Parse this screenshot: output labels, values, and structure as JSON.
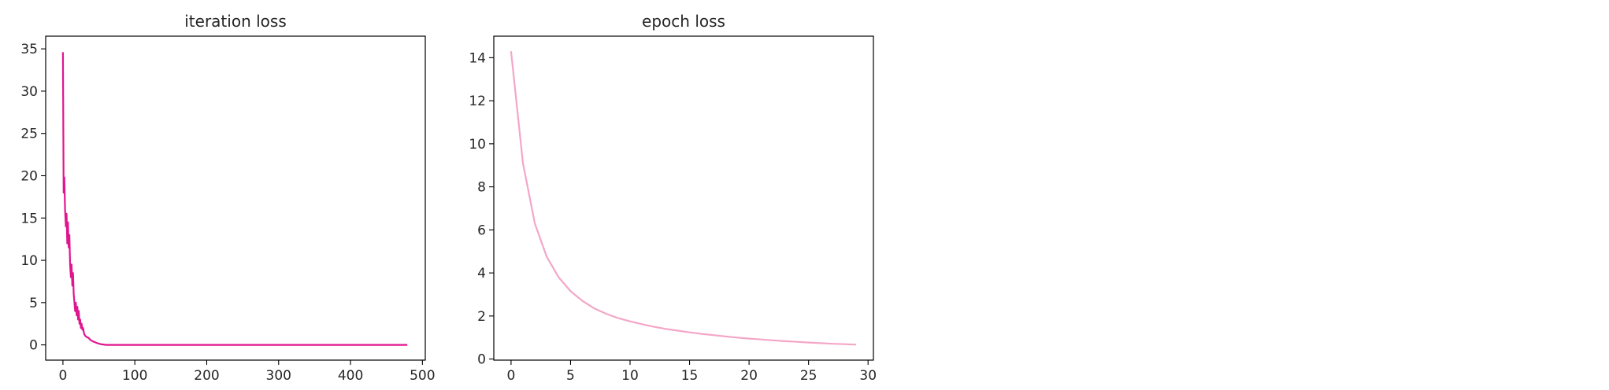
{
  "chart_data": [
    {
      "type": "line",
      "title": "iteration loss",
      "xlabel": "",
      "ylabel": "",
      "xlim": [
        -24,
        504
      ],
      "ylim": [
        -1.8,
        36.5
      ],
      "xticks": [
        0,
        100,
        200,
        300,
        400,
        500
      ],
      "yticks": [
        0,
        5,
        10,
        15,
        20,
        25,
        30,
        35
      ],
      "grid": false,
      "color": "#e0168f",
      "series": [
        {
          "x": [
            0,
            1,
            2,
            3,
            4,
            5,
            6,
            7,
            8,
            9,
            10,
            11,
            12,
            13,
            14,
            15,
            16,
            17,
            18,
            19,
            20,
            21,
            22,
            23,
            24,
            25,
            26,
            27,
            28,
            29,
            30,
            32,
            34,
            36,
            38,
            40,
            42,
            45,
            48,
            52,
            56,
            60,
            70,
            80,
            100,
            150,
            200,
            250,
            300,
            350,
            400,
            450,
            479
          ],
          "y": [
            34.6,
            18.0,
            19.8,
            16.0,
            14.0,
            15.5,
            12.0,
            14.5,
            11.5,
            13.0,
            9.5,
            8.0,
            9.5,
            7.0,
            8.5,
            6.0,
            5.0,
            4.0,
            5.0,
            3.5,
            4.5,
            3.0,
            4.0,
            2.5,
            3.0,
            2.0,
            2.5,
            1.8,
            2.0,
            1.5,
            1.2,
            1.0,
            0.9,
            0.8,
            0.6,
            0.5,
            0.4,
            0.3,
            0.2,
            0.1,
            0.05,
            0.0,
            0.0,
            0.0,
            0.0,
            0.0,
            0.0,
            0.0,
            0.0,
            0.0,
            0.0,
            0.0,
            0.0
          ]
        }
      ]
    },
    {
      "type": "line",
      "title": "epoch loss",
      "xlabel": "",
      "ylabel": "",
      "xlim": [
        -1.45,
        30.45
      ],
      "ylim": [
        -0.05,
        15.0
      ],
      "xticks": [
        0,
        5,
        10,
        15,
        20,
        25,
        30
      ],
      "yticks": [
        0,
        2,
        4,
        6,
        8,
        10,
        12,
        14
      ],
      "grid": false,
      "color": "#f4a6c7",
      "series": [
        {
          "x": [
            0,
            1,
            2,
            3,
            4,
            5,
            6,
            7,
            8,
            9,
            10,
            11,
            12,
            13,
            14,
            15,
            16,
            17,
            18,
            19,
            20,
            21,
            22,
            23,
            24,
            25,
            26,
            27,
            28,
            29
          ],
          "y": [
            14.3,
            9.1,
            6.3,
            4.75,
            3.8,
            3.15,
            2.7,
            2.35,
            2.1,
            1.9,
            1.75,
            1.62,
            1.5,
            1.4,
            1.32,
            1.24,
            1.17,
            1.11,
            1.05,
            1.0,
            0.95,
            0.91,
            0.87,
            0.83,
            0.8,
            0.77,
            0.74,
            0.71,
            0.69,
            0.67
          ]
        }
      ]
    }
  ]
}
